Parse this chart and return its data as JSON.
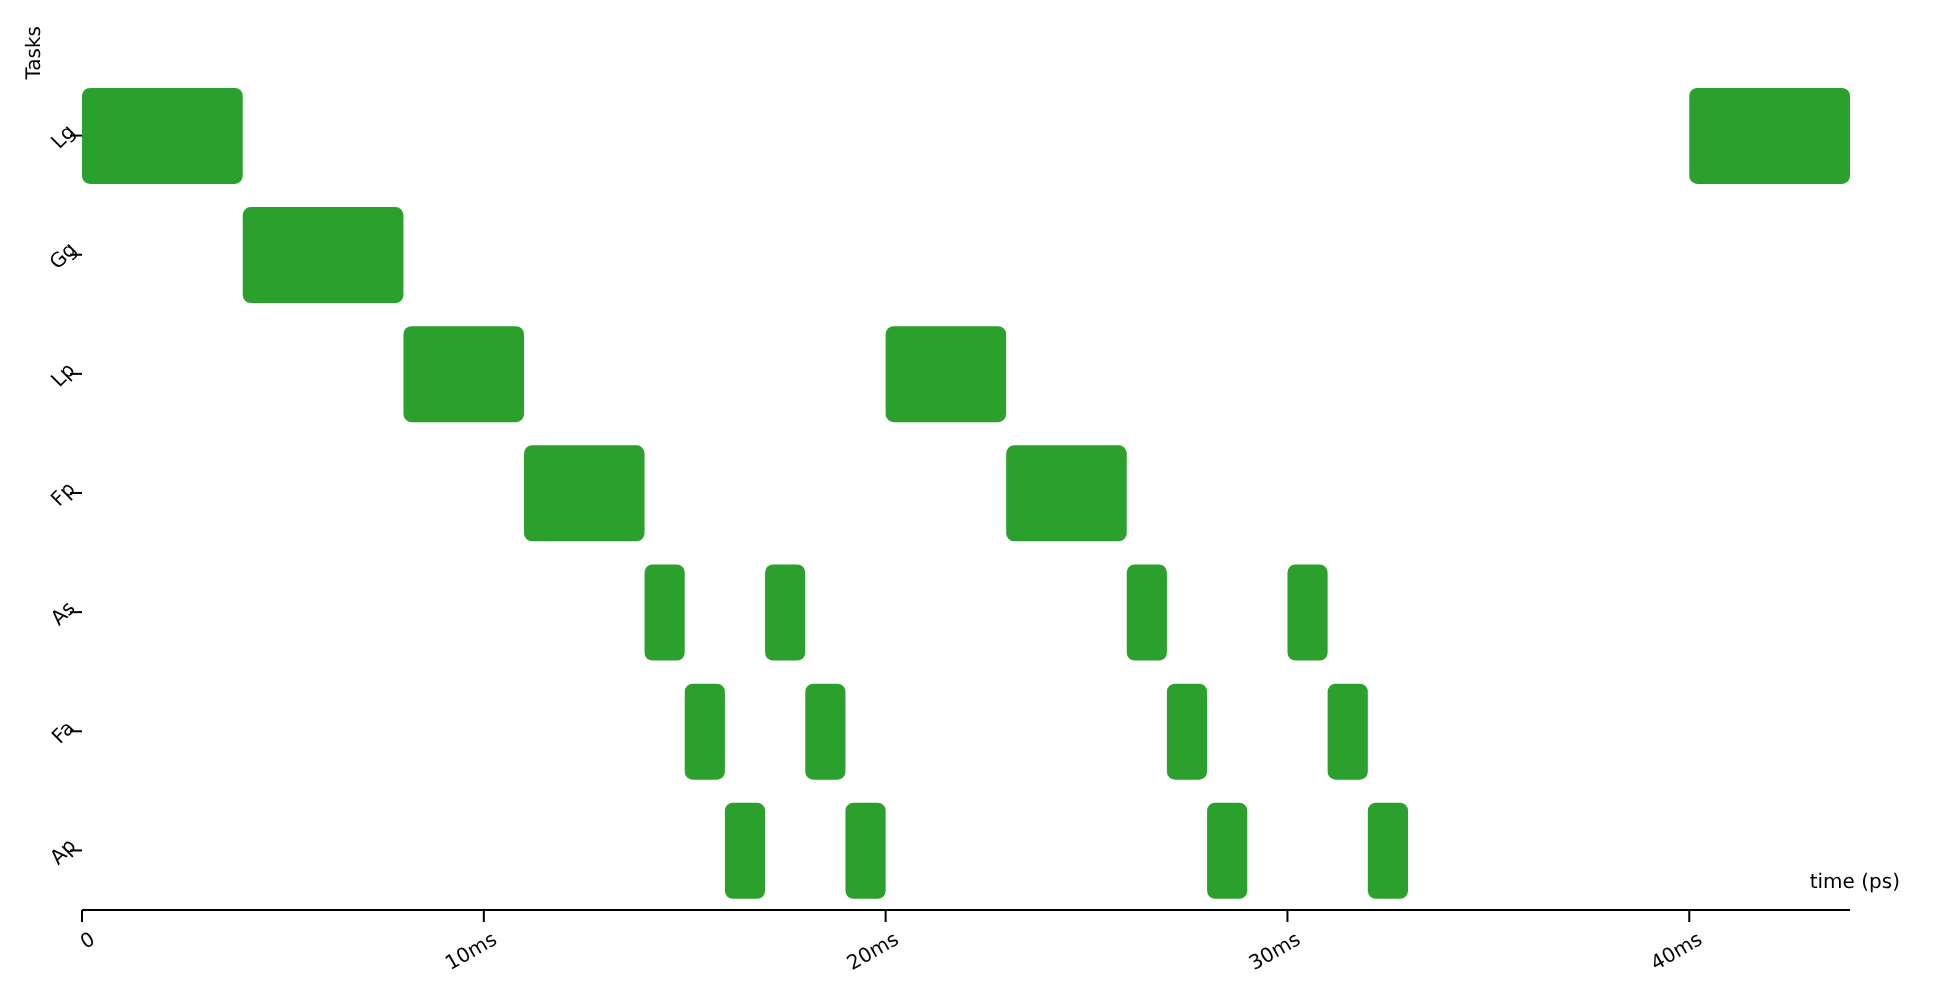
{
  "chart_data": {
    "type": "bar",
    "orientation": "horizontal",
    "ylabel": "Tasks",
    "xlabel": "time (ps)",
    "categories": [
      "Lg",
      "Gg",
      "Lp",
      "Fp",
      "As",
      "Fa",
      "Ap"
    ],
    "series": [
      {
        "color": "#2ca02c",
        "base": [
          0,
          4,
          8,
          11,
          14,
          15,
          16
        ],
        "values": [
          4,
          4,
          3,
          3,
          1,
          1,
          1
        ]
      },
      {
        "color": "#2ca02c",
        "base": [
          40,
          null,
          20,
          23,
          17,
          18,
          19
        ],
        "values": [
          4,
          null,
          3,
          3,
          1,
          1,
          1
        ]
      },
      {
        "color": "#2ca02c",
        "base": [
          null,
          null,
          null,
          null,
          26,
          27,
          28
        ],
        "values": [
          null,
          null,
          null,
          null,
          1,
          1,
          1
        ]
      },
      {
        "color": "#2ca02c",
        "base": [
          null,
          null,
          null,
          null,
          30,
          31,
          32
        ],
        "values": [
          null,
          null,
          null,
          null,
          1,
          1,
          1
        ]
      }
    ],
    "xlim": [
      0,
      44
    ],
    "xticks": [
      {
        "value": 0,
        "label": "0"
      },
      {
        "value": 10,
        "label": "10ms"
      },
      {
        "value": 20,
        "label": "20ms"
      },
      {
        "value": 30,
        "label": "30ms"
      },
      {
        "value": 40,
        "label": "40ms"
      }
    ],
    "grid": false,
    "legend": false
  }
}
